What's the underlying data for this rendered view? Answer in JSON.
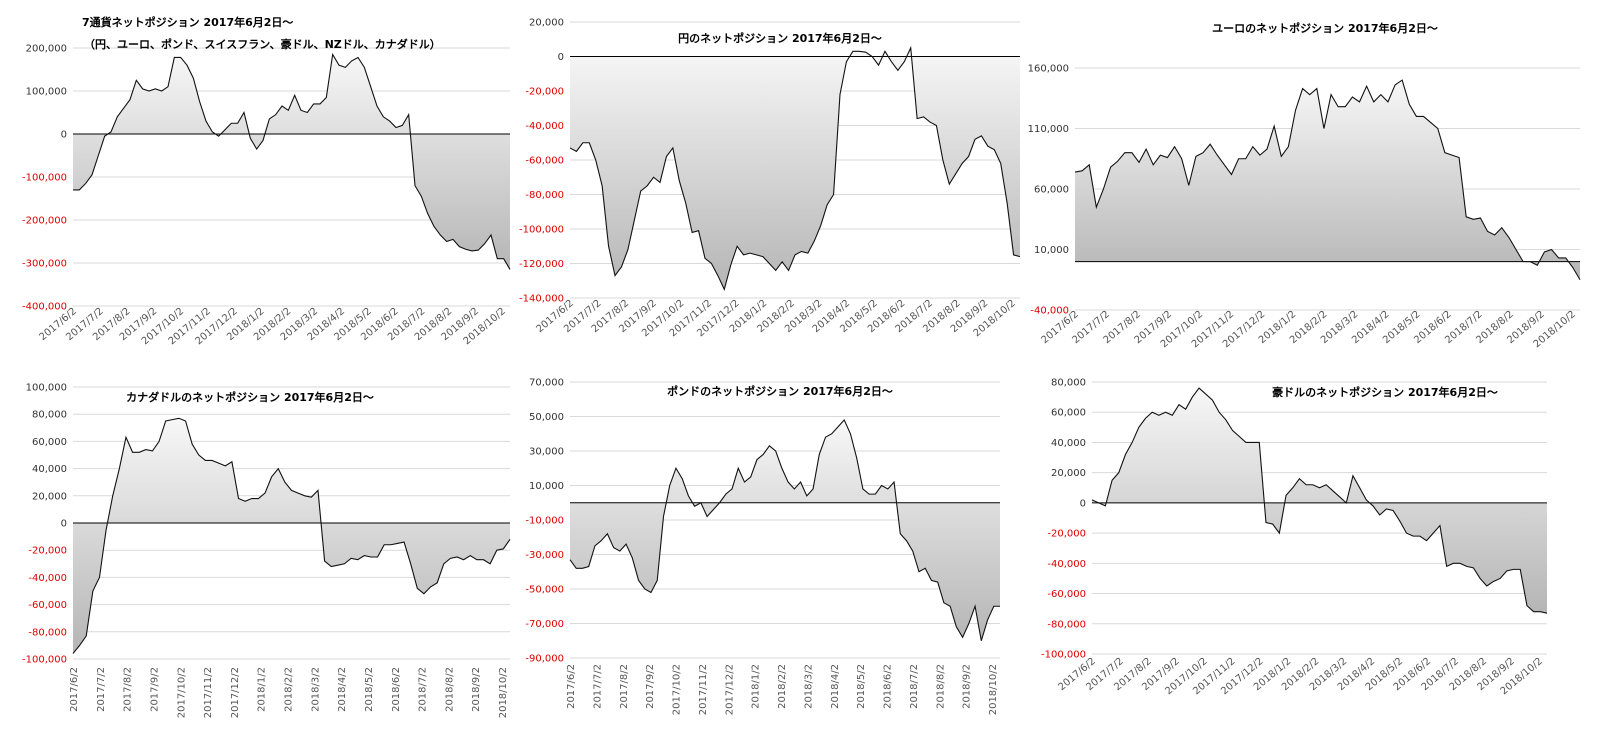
{
  "chart_data": [
    {
      "type": "area",
      "title": "7通貨ネットポジション 2017年6月2日～",
      "subtitle": "（円、ユーロ、ポンド、スイスフラン、豪ドル、NZドル、カナダドル）",
      "xlabel": "",
      "ylabel": "",
      "ylim": [
        -400000,
        200000
      ],
      "yticks": [
        200000,
        100000,
        0,
        -100000,
        -200000,
        -300000,
        -400000
      ],
      "ytick_labels": [
        "200,000",
        "100,000",
        "0",
        "-100,000",
        "-200,000",
        "-300,000",
        "-400,000"
      ],
      "x_tick_labels": [
        "2017/6/2",
        "2017/7/2",
        "2017/8/2",
        "2017/9/2",
        "2017/10/2",
        "2017/11/2",
        "2017/12/2",
        "2018/1/2",
        "2018/2/2",
        "2018/3/2",
        "2018/4/2",
        "2018/5/2",
        "2018/6/2",
        "2018/7/2",
        "2018/8/2",
        "2018/9/2",
        "2018/10/2"
      ],
      "grid": true,
      "values": [
        -130000,
        -130000,
        -115000,
        -95000,
        -50000,
        -5000,
        5000,
        40000,
        60000,
        80000,
        125000,
        105000,
        100000,
        105000,
        100000,
        110000,
        178000,
        178000,
        160000,
        130000,
        75000,
        30000,
        5000,
        -5000,
        10000,
        25000,
        25000,
        50000,
        -10000,
        -35000,
        -15000,
        35000,
        45000,
        65000,
        55000,
        90000,
        55000,
        50000,
        70000,
        70000,
        85000,
        185000,
        160000,
        155000,
        170000,
        178000,
        155000,
        110000,
        65000,
        40000,
        30000,
        15000,
        20000,
        45000,
        -120000,
        -145000,
        -185000,
        -215000,
        -235000,
        -250000,
        -245000,
        -262000,
        -268000,
        -272000,
        -270000,
        -255000,
        -235000,
        -290000,
        -290000,
        -315000
      ]
    },
    {
      "type": "area",
      "title": "円のネットポジション 2017年6月2日～",
      "xlabel": "",
      "ylabel": "",
      "ylim": [
        -140000,
        20000
      ],
      "yticks": [
        20000,
        0,
        -20000,
        -40000,
        -60000,
        -80000,
        -100000,
        -120000,
        -140000
      ],
      "ytick_labels": [
        "20,000",
        "0",
        "-20,000",
        "-40,000",
        "-60,000",
        "-80,000",
        "-100,000",
        "-120,000",
        "-140,000"
      ],
      "x_tick_labels": [
        "2017/6/2",
        "2017/7/2",
        "2017/8/2",
        "2017/9/2",
        "2017/10/2",
        "2017/11/2",
        "2017/12/2",
        "2018/1/2",
        "2018/2/2",
        "2018/3/2",
        "2018/4/2",
        "2018/5/2",
        "2018/6/2",
        "2018/7/2",
        "2018/8/2",
        "2018/9/2",
        "2018/10/2"
      ],
      "grid": true,
      "values": [
        -53000,
        -55000,
        -50000,
        -50000,
        -60000,
        -75000,
        -110000,
        -127000,
        -122000,
        -112000,
        -95000,
        -78000,
        -75000,
        -70000,
        -73000,
        -58000,
        -53000,
        -72000,
        -85000,
        -102000,
        -101000,
        -117000,
        -120000,
        -127000,
        -135000,
        -121000,
        -110000,
        -115000,
        -114000,
        -115000,
        -116000,
        -120000,
        -124000,
        -119000,
        -124000,
        -115000,
        -113000,
        -114000,
        -107000,
        -98000,
        -86000,
        -80000,
        -22000,
        -3000,
        3000,
        3000,
        2500,
        0,
        -5000,
        3000,
        -3000,
        -8000,
        -3000,
        5000,
        -36000,
        -35000,
        -38000,
        -40000,
        -60000,
        -74000,
        -68000,
        -62000,
        -58000,
        -48000,
        -46000,
        -52000,
        -54000,
        -62000,
        -85000,
        -115000,
        -116000
      ]
    },
    {
      "type": "area",
      "title": "ユーロのネットポジション 2017年6月2日～",
      "xlabel": "",
      "ylabel": "",
      "ylim": [
        -40000,
        160000
      ],
      "yticks": [
        160000,
        110000,
        60000,
        10000,
        -40000
      ],
      "ytick_labels": [
        "160,000",
        "110,000",
        "60,000",
        "10,000",
        "-40,000"
      ],
      "x_tick_labels": [
        "2017/6/2",
        "2017/7/2",
        "2017/8/2",
        "2017/9/2",
        "2017/10/2",
        "2017/11/2",
        "2017/12/2",
        "2018/1/2",
        "2018/2/2",
        "2018/3/2",
        "2018/4/2",
        "2018/5/2",
        "2018/6/2",
        "2018/7/2",
        "2018/8/2",
        "2018/9/2",
        "2018/10/2"
      ],
      "grid": true,
      "values": [
        74000,
        75000,
        80000,
        45000,
        60000,
        78000,
        83000,
        90000,
        90000,
        82000,
        93000,
        80000,
        88000,
        86000,
        95000,
        85000,
        63000,
        87000,
        90000,
        97000,
        88000,
        80000,
        72000,
        85000,
        85000,
        95000,
        88000,
        93000,
        112000,
        87000,
        95000,
        125000,
        143000,
        138000,
        143000,
        110000,
        138000,
        128000,
        128000,
        136000,
        132000,
        145000,
        132000,
        138000,
        132000,
        146000,
        150000,
        130000,
        120000,
        120000,
        115000,
        110000,
        90000,
        88000,
        86000,
        37000,
        35000,
        36000,
        25000,
        22000,
        28000,
        20000,
        10000,
        0,
        0,
        -3000,
        8000,
        10000,
        3000,
        3000,
        -5000,
        -15000
      ]
    },
    {
      "type": "area",
      "title": "カナダドルのネットポジション 2017年6月2日～",
      "xlabel": "",
      "ylabel": "",
      "ylim": [
        -100000,
        100000
      ],
      "yticks": [
        100000,
        80000,
        60000,
        40000,
        20000,
        0,
        -20000,
        -40000,
        -60000,
        -80000,
        -100000
      ],
      "ytick_labels": [
        "100,000",
        "80,000",
        "60,000",
        "40,000",
        "20,000",
        "0",
        "-20,000",
        "-40,000",
        "-60,000",
        "-80,000",
        "-100,000"
      ],
      "x_tick_labels": [
        "2017/6/2",
        "2017/7/2",
        "2017/8/2",
        "2017/9/2",
        "2017/10/2",
        "2017/11/2",
        "2017/12/2",
        "2018/1/2",
        "2018/2/2",
        "2018/3/2",
        "2018/4/2",
        "2018/5/2",
        "2018/6/2",
        "2018/7/2",
        "2018/8/2",
        "2018/9/2",
        "2018/10/2"
      ],
      "grid": true,
      "values": [
        -96000,
        -90000,
        -83000,
        -50000,
        -40000,
        -5000,
        20000,
        40000,
        63000,
        52000,
        52000,
        54000,
        53000,
        60000,
        75000,
        76000,
        77000,
        75000,
        58000,
        50000,
        46000,
        46000,
        44000,
        42000,
        45000,
        18000,
        16000,
        18000,
        18000,
        22000,
        34000,
        40000,
        30000,
        24000,
        22000,
        20000,
        19000,
        24000,
        -28000,
        -32000,
        -31000,
        -30000,
        -26000,
        -27000,
        -24000,
        -25000,
        -25000,
        -16000,
        -16000,
        -15000,
        -14000,
        -30000,
        -48000,
        -52000,
        -47000,
        -44000,
        -30000,
        -26000,
        -25000,
        -27000,
        -24000,
        -27000,
        -27000,
        -30000,
        -20000,
        -19000,
        -12000
      ]
    },
    {
      "type": "area",
      "title": "ポンドのネットポジション 2017年6月2日～",
      "xlabel": "",
      "ylabel": "",
      "ylim": [
        -90000,
        70000
      ],
      "yticks": [
        70000,
        50000,
        30000,
        10000,
        -10000,
        -30000,
        -50000,
        -70000,
        -90000
      ],
      "ytick_labels": [
        "70,000",
        "50,000",
        "30,000",
        "10,000",
        "-10,000",
        "-30,000",
        "-50,000",
        "-70,000",
        "-90,000"
      ],
      "x_tick_labels": [
        "2017/6/2",
        "2017/7/2",
        "2017/8/2",
        "2017/9/2",
        "2017/10/2",
        "2017/11/2",
        "2017/12/2",
        "2018/1/2",
        "2018/2/2",
        "2018/3/2",
        "2018/4/2",
        "2018/5/2",
        "2018/6/2",
        "2018/7/2",
        "2018/8/2",
        "2018/9/2",
        "2018/10/2"
      ],
      "grid": true,
      "values": [
        -33000,
        -38000,
        -38000,
        -37000,
        -25000,
        -22000,
        -18000,
        -26000,
        -28000,
        -24000,
        -32000,
        -45000,
        -50000,
        -52000,
        -45000,
        -8000,
        10000,
        20000,
        14000,
        4000,
        -2000,
        0,
        -8000,
        -4000,
        0,
        5000,
        8000,
        20000,
        12000,
        15000,
        25000,
        28000,
        33000,
        30000,
        20000,
        12000,
        8000,
        12000,
        4000,
        8000,
        28000,
        38000,
        40000,
        44000,
        48000,
        40000,
        26000,
        8000,
        5000,
        5000,
        10000,
        8000,
        12000,
        -18000,
        -22000,
        -28000,
        -40000,
        -38000,
        -45000,
        -46000,
        -58000,
        -60000,
        -72000,
        -78000,
        -70000,
        -60000,
        -80000,
        -68000,
        -60000,
        -60000
      ]
    },
    {
      "type": "area",
      "title": "豪ドルのネットポジション 2017年6月2日～",
      "xlabel": "",
      "ylabel": "",
      "ylim": [
        -100000,
        80000
      ],
      "yticks": [
        80000,
        60000,
        40000,
        20000,
        0,
        -20000,
        -40000,
        -60000,
        -80000,
        -100000
      ],
      "ytick_labels": [
        "80,000",
        "60,000",
        "40,000",
        "20,000",
        "0",
        "-20,000",
        "-40,000",
        "-60,000",
        "-80,000",
        "-100,000"
      ],
      "x_tick_labels": [
        "2017/6/2",
        "2017/7/2",
        "2017/8/2",
        "2017/9/2",
        "2017/10/2",
        "2017/11/2",
        "2017/12/2",
        "2018/1/2",
        "2018/2/2",
        "2018/3/2",
        "2018/4/2",
        "2018/5/2",
        "2018/6/2",
        "2018/7/2",
        "2018/8/2",
        "2018/9/2",
        "2018/10/2"
      ],
      "grid": true,
      "values": [
        2000,
        0,
        -2000,
        15000,
        20000,
        32000,
        40000,
        50000,
        56000,
        60000,
        58000,
        60000,
        58000,
        65000,
        62000,
        70000,
        76000,
        72000,
        68000,
        60000,
        55000,
        48000,
        44000,
        40000,
        40000,
        40000,
        -13000,
        -14000,
        -20000,
        5000,
        10000,
        16000,
        12000,
        12000,
        10000,
        12000,
        8000,
        4000,
        0,
        18000,
        10000,
        2000,
        -2000,
        -8000,
        -4000,
        -5000,
        -12000,
        -20000,
        -22000,
        -22000,
        -25000,
        -20000,
        -15000,
        -42000,
        -40000,
        -40000,
        -42000,
        -43000,
        -50000,
        -55000,
        -52000,
        -50000,
        -45000,
        -44000,
        -44000,
        -68000,
        -72000,
        -72000,
        -73000
      ]
    }
  ]
}
